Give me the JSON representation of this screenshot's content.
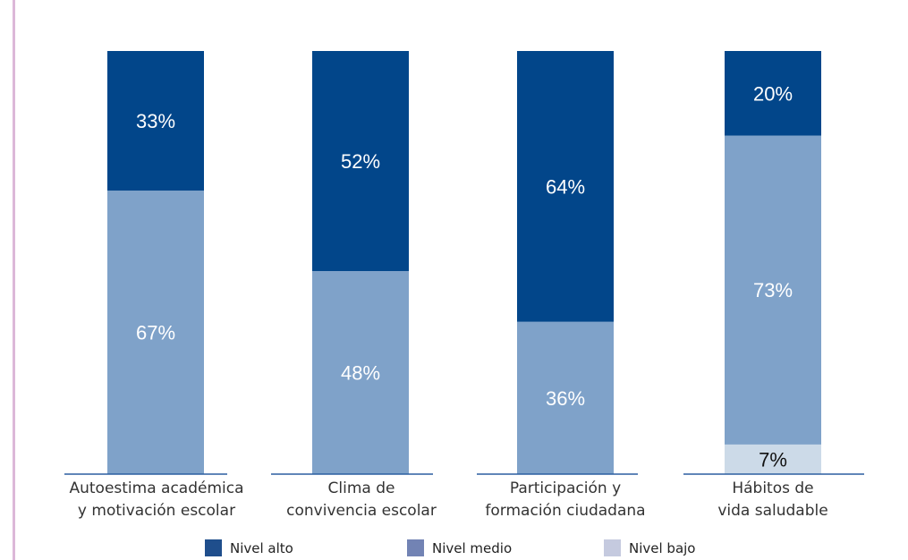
{
  "chart_data": {
    "type": "bar",
    "stacked": true,
    "categories": [
      [
        "Autoestima académica",
        "y motivación escolar"
      ],
      [
        "Clima de",
        "convivencia escolar"
      ],
      [
        "Participación y",
        "formación ciudadana"
      ],
      [
        "Hábitos de",
        "vida saludable"
      ]
    ],
    "series": [
      {
        "name": "Nivel alto",
        "color": "#02468a",
        "values": [
          33,
          52,
          64,
          20
        ],
        "labels": [
          "33%",
          "52%",
          "64%",
          "20%"
        ]
      },
      {
        "name": "Nivel medio",
        "color": "#7fa2c9",
        "values": [
          67,
          48,
          36,
          73
        ],
        "labels": [
          "67%",
          "48%",
          "36%",
          "73%"
        ]
      },
      {
        "name": "Nivel bajo",
        "color": "#ccdae8",
        "values": [
          0,
          0,
          0,
          7
        ],
        "labels": [
          "",
          "",
          "",
          "7%"
        ]
      }
    ],
    "legend_colors": [
      "#1f4e8c",
      "#7283b4",
      "#c5cadf"
    ],
    "ylim": [
      0,
      100
    ],
    "legend_position": "bottom",
    "grid": false
  }
}
